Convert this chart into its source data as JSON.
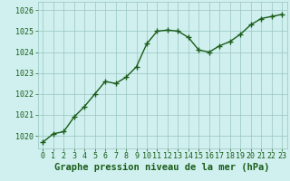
{
  "x": [
    0,
    1,
    2,
    3,
    4,
    5,
    6,
    7,
    8,
    9,
    10,
    11,
    12,
    13,
    14,
    15,
    16,
    17,
    18,
    19,
    20,
    21,
    22,
    23
  ],
  "y": [
    1019.7,
    1020.1,
    1020.2,
    1020.9,
    1021.4,
    1022.0,
    1022.6,
    1022.5,
    1022.8,
    1023.3,
    1024.4,
    1025.0,
    1025.05,
    1025.0,
    1024.7,
    1024.1,
    1024.0,
    1024.3,
    1024.5,
    1024.85,
    1025.3,
    1025.6,
    1025.7,
    1025.8
  ],
  "line_color": "#1a5c1a",
  "marker": "+",
  "marker_size": 4,
  "marker_color": "#1a5c1a",
  "bg_color": "#cff0ee",
  "grid_minor_color": "#aad4d0",
  "grid_major_color": "#99c4c0",
  "xlabel": "Graphe pression niveau de la mer (hPa)",
  "xlabel_fontsize": 7.5,
  "xlabel_color": "#1a5c1a",
  "ylabel_ticks": [
    1020,
    1021,
    1022,
    1023,
    1024,
    1025,
    1026
  ],
  "xtick_labels": [
    "0",
    "1",
    "2",
    "3",
    "4",
    "5",
    "6",
    "7",
    "8",
    "9",
    "10",
    "11",
    "12",
    "13",
    "14",
    "15",
    "16",
    "17",
    "18",
    "19",
    "20",
    "21",
    "22",
    "23"
  ],
  "ylim": [
    1019.4,
    1026.4
  ],
  "xlim": [
    -0.5,
    23.5
  ],
  "tick_color": "#1a5c1a",
  "tick_fontsize": 6,
  "linewidth": 1.0
}
